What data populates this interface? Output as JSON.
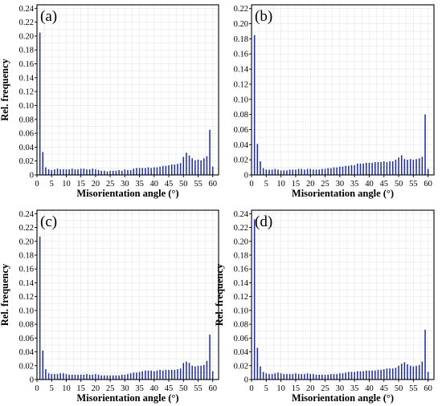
{
  "chart_data": [
    {
      "type": "bar",
      "panel_label": "(a)",
      "xlabel": "Misorientation angle (°)",
      "ylabel": "Rel. frequency",
      "xlim": [
        0,
        62
      ],
      "ylim": [
        0,
        0.245
      ],
      "x_ticks": [
        0,
        5,
        10,
        15,
        20,
        25,
        30,
        35,
        40,
        45,
        50,
        55,
        60
      ],
      "y_ticks": [
        0,
        0.02,
        0.04,
        0.06,
        0.08,
        0.1,
        0.12,
        0.14,
        0.16,
        0.18,
        0.2,
        0.22,
        0.24
      ],
      "y_tick_labels": [
        "0",
        "0.02",
        "0.04",
        "0.06",
        "0.08",
        "0.10",
        "0.12",
        "0.14",
        "0.16",
        "0.18",
        "0.20",
        "0.22",
        "0.24"
      ],
      "grid": true,
      "bar_color": "#1f2f9c",
      "x": [
        1,
        2,
        3,
        4,
        5,
        6,
        7,
        8,
        9,
        10,
        11,
        12,
        13,
        14,
        15,
        16,
        17,
        18,
        19,
        20,
        21,
        22,
        23,
        24,
        25,
        26,
        27,
        28,
        29,
        30,
        31,
        32,
        33,
        34,
        35,
        36,
        37,
        38,
        39,
        40,
        41,
        42,
        43,
        44,
        45,
        46,
        47,
        48,
        49,
        50,
        51,
        52,
        53,
        54,
        55,
        56,
        57,
        58,
        59,
        60
      ],
      "values": [
        0.205,
        0.033,
        0.011,
        0.008,
        0.007,
        0.008,
        0.009,
        0.008,
        0.008,
        0.008,
        0.008,
        0.009,
        0.008,
        0.008,
        0.009,
        0.009,
        0.008,
        0.008,
        0.009,
        0.008,
        0.007,
        0.006,
        0.006,
        0.005,
        0.006,
        0.006,
        0.006,
        0.007,
        0.006,
        0.008,
        0.007,
        0.007,
        0.009,
        0.01,
        0.01,
        0.01,
        0.01,
        0.011,
        0.01,
        0.011,
        0.011,
        0.012,
        0.013,
        0.013,
        0.014,
        0.015,
        0.015,
        0.016,
        0.017,
        0.026,
        0.032,
        0.028,
        0.024,
        0.021,
        0.022,
        0.021,
        0.024,
        0.027,
        0.065,
        0.012
      ]
    },
    {
      "type": "bar",
      "panel_label": "(b)",
      "xlabel": "Misorientation angle (°)",
      "ylabel": "",
      "xlim": [
        0,
        62
      ],
      "ylim": [
        0,
        0.225
      ],
      "x_ticks": [
        0,
        5,
        10,
        15,
        20,
        25,
        30,
        35,
        40,
        45,
        50,
        55,
        60
      ],
      "y_ticks": [
        0,
        0.02,
        0.04,
        0.06,
        0.08,
        0.1,
        0.12,
        0.14,
        0.16,
        0.18,
        0.2,
        0.22
      ],
      "y_tick_labels": [
        "0",
        "0.02",
        "0.04",
        "0.06",
        "0.08",
        "0.10",
        "0.12",
        "0.14",
        "0.16",
        "0.18",
        "0.20",
        "0.22"
      ],
      "grid": true,
      "bar_color": "#1f2f9c",
      "x": [
        1,
        2,
        3,
        4,
        5,
        6,
        7,
        8,
        9,
        10,
        11,
        12,
        13,
        14,
        15,
        16,
        17,
        18,
        19,
        20,
        21,
        22,
        23,
        24,
        25,
        26,
        27,
        28,
        29,
        30,
        31,
        32,
        33,
        34,
        35,
        36,
        37,
        38,
        39,
        40,
        41,
        42,
        43,
        44,
        45,
        46,
        47,
        48,
        49,
        50,
        51,
        52,
        53,
        54,
        55,
        56,
        57,
        58,
        59,
        60
      ],
      "values": [
        0.185,
        0.041,
        0.018,
        0.009,
        0.007,
        0.007,
        0.007,
        0.008,
        0.007,
        0.006,
        0.006,
        0.006,
        0.007,
        0.007,
        0.007,
        0.008,
        0.008,
        0.007,
        0.008,
        0.008,
        0.007,
        0.007,
        0.007,
        0.008,
        0.008,
        0.009,
        0.009,
        0.01,
        0.01,
        0.011,
        0.011,
        0.012,
        0.012,
        0.013,
        0.013,
        0.015,
        0.015,
        0.015,
        0.016,
        0.016,
        0.016,
        0.017,
        0.017,
        0.017,
        0.018,
        0.017,
        0.018,
        0.018,
        0.02,
        0.023,
        0.026,
        0.021,
        0.02,
        0.021,
        0.02,
        0.021,
        0.022,
        0.024,
        0.08,
        0.008
      ]
    },
    {
      "type": "bar",
      "panel_label": "(c)",
      "xlabel": "Misorientation angle (°)",
      "ylabel": "Rel. frequency",
      "xlim": [
        0,
        62
      ],
      "ylim": [
        0,
        0.245
      ],
      "x_ticks": [
        0,
        5,
        10,
        15,
        20,
        25,
        30,
        35,
        40,
        45,
        50,
        55,
        60
      ],
      "y_ticks": [
        0,
        0.02,
        0.04,
        0.06,
        0.08,
        0.1,
        0.12,
        0.14,
        0.16,
        0.18,
        0.2,
        0.22,
        0.24
      ],
      "y_tick_labels": [
        "0",
        "0.02",
        "0.04",
        "0.06",
        "0.08",
        "0.10",
        "0.12",
        "0.14",
        "0.16",
        "0.18",
        "0.20",
        "0.22",
        "0.24"
      ],
      "grid": true,
      "bar_color": "#1f2f9c",
      "x": [
        1,
        2,
        3,
        4,
        5,
        6,
        7,
        8,
        9,
        10,
        11,
        12,
        13,
        14,
        15,
        16,
        17,
        18,
        19,
        20,
        21,
        22,
        23,
        24,
        25,
        26,
        27,
        28,
        29,
        30,
        31,
        32,
        33,
        34,
        35,
        36,
        37,
        38,
        39,
        40,
        41,
        42,
        43,
        44,
        45,
        46,
        47,
        48,
        49,
        50,
        51,
        52,
        53,
        54,
        55,
        56,
        57,
        58,
        59,
        60
      ],
      "values": [
        0.207,
        0.042,
        0.015,
        0.009,
        0.008,
        0.008,
        0.008,
        0.009,
        0.009,
        0.008,
        0.007,
        0.007,
        0.007,
        0.007,
        0.007,
        0.007,
        0.008,
        0.007,
        0.007,
        0.008,
        0.007,
        0.006,
        0.006,
        0.006,
        0.006,
        0.006,
        0.006,
        0.006,
        0.007,
        0.007,
        0.008,
        0.009,
        0.01,
        0.01,
        0.011,
        0.012,
        0.013,
        0.013,
        0.013,
        0.012,
        0.013,
        0.014,
        0.013,
        0.014,
        0.014,
        0.014,
        0.014,
        0.015,
        0.016,
        0.024,
        0.026,
        0.024,
        0.02,
        0.019,
        0.02,
        0.02,
        0.021,
        0.027,
        0.065,
        0.012
      ]
    },
    {
      "type": "bar",
      "panel_label": "(d)",
      "xlabel": "Misorientation angle (°)",
      "ylabel": "Rel. frequency",
      "xlim": [
        0,
        62
      ],
      "ylim": [
        0,
        0.245
      ],
      "x_ticks": [
        0,
        5,
        10,
        15,
        20,
        25,
        30,
        35,
        40,
        45,
        50,
        55,
        60
      ],
      "y_ticks": [
        0,
        0.02,
        0.04,
        0.06,
        0.08,
        0.1,
        0.12,
        0.14,
        0.16,
        0.18,
        0.2,
        0.22,
        0.24
      ],
      "y_tick_labels": [
        "0",
        "0.02",
        "0.04",
        "0.06",
        "0.08",
        "0.10",
        "0.12",
        "0.14",
        "0.16",
        "0.18",
        "0.20",
        "0.22",
        "0.24"
      ],
      "grid": true,
      "bar_color": "#1f2f9c",
      "x": [
        1,
        2,
        3,
        4,
        5,
        6,
        7,
        8,
        9,
        10,
        11,
        12,
        13,
        14,
        15,
        16,
        17,
        18,
        19,
        20,
        21,
        22,
        23,
        24,
        25,
        26,
        27,
        28,
        29,
        30,
        31,
        32,
        33,
        34,
        35,
        36,
        37,
        38,
        39,
        40,
        41,
        42,
        43,
        44,
        45,
        46,
        47,
        48,
        49,
        50,
        51,
        52,
        53,
        54,
        55,
        56,
        57,
        58,
        59,
        60
      ],
      "values": [
        0.232,
        0.046,
        0.019,
        0.011,
        0.009,
        0.008,
        0.008,
        0.009,
        0.01,
        0.009,
        0.008,
        0.008,
        0.008,
        0.008,
        0.009,
        0.008,
        0.008,
        0.008,
        0.009,
        0.008,
        0.008,
        0.007,
        0.007,
        0.007,
        0.007,
        0.007,
        0.008,
        0.008,
        0.008,
        0.009,
        0.009,
        0.01,
        0.011,
        0.011,
        0.011,
        0.012,
        0.012,
        0.012,
        0.013,
        0.013,
        0.013,
        0.013,
        0.014,
        0.014,
        0.015,
        0.016,
        0.016,
        0.016,
        0.017,
        0.02,
        0.023,
        0.025,
        0.022,
        0.02,
        0.019,
        0.02,
        0.021,
        0.026,
        0.072,
        0.011
      ]
    }
  ]
}
